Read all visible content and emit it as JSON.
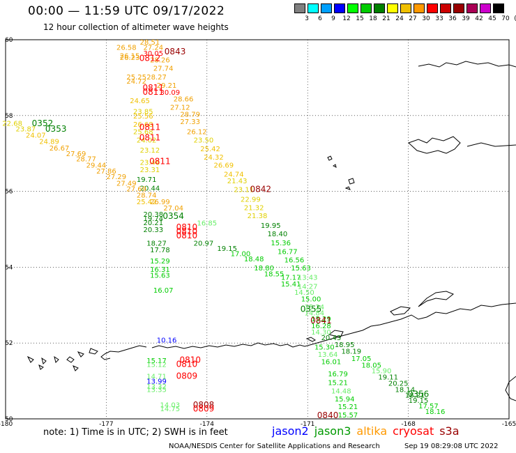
{
  "title": "00:00 — 11:59 UTC 09/17/2022",
  "subtitle": "12 hour collection of altimeter wave heights",
  "scale": {
    "labels": [
      "3",
      "6",
      "9",
      "12",
      "15",
      "18",
      "21",
      "24",
      "27",
      "30",
      "33",
      "36",
      "39",
      "42",
      "45",
      "70",
      "(ft)"
    ],
    "colors": [
      "#808080",
      "#00ffff",
      "#00a0ff",
      "#0000ff",
      "#00ff00",
      "#00cc00",
      "#008000",
      "#ffff00",
      "#f0c000",
      "#ff9900",
      "#ff0000",
      "#cc0000",
      "#990000",
      "#aa0055",
      "#cc00cc",
      "#000000"
    ]
  },
  "axes": {
    "lon_ticks": [
      "-180",
      "-177",
      "-174",
      "-171",
      "-168",
      "-165"
    ],
    "lat_ticks": [
      "60",
      "58",
      "56",
      "54",
      "52",
      "50"
    ]
  },
  "footnote": "note: 1) Time is in UTC; 2) SWH is in feet",
  "satellites": [
    {
      "name": "jason2",
      "color": "#0000ff"
    },
    {
      "name": "jason3",
      "color": "#009900"
    },
    {
      "name": "altika",
      "color": "#ff9900"
    },
    {
      "name": "cryosat",
      "color": "#ff0000"
    },
    {
      "name": "s3a",
      "color": "#990000"
    }
  ],
  "credit": "NOAA/NESDIS Center for Satellite Applications and Research",
  "timestamp": "Sep 19 08:29:08 UTC 2022",
  "pass_labels": [
    {
      "text": "0843",
      "lon": -174.95,
      "lat": 59.61,
      "color": "#990000"
    },
    {
      "text": "0812",
      "lon": -175.7,
      "lat": 59.44,
      "color": "#ff0000"
    },
    {
      "text": "0811",
      "lon": -175.6,
      "lat": 58.66,
      "color": "#ff0000"
    },
    {
      "text": "0811",
      "lon": -175.6,
      "lat": 58.55,
      "color": "#ff0000"
    },
    {
      "text": "0352",
      "lon": -178.9,
      "lat": 57.72,
      "color": "#008000"
    },
    {
      "text": "0353",
      "lon": -178.5,
      "lat": 57.57,
      "color": "#008000"
    },
    {
      "text": "0811",
      "lon": -175.7,
      "lat": 57.62,
      "color": "#ff0000"
    },
    {
      "text": "0811",
      "lon": -175.7,
      "lat": 57.34,
      "color": "#ff0000"
    },
    {
      "text": "0811",
      "lon": -175.4,
      "lat": 56.72,
      "color": "#ff0000"
    },
    {
      "text": "0842",
      "lon": -172.4,
      "lat": 55.98,
      "color": "#990000"
    },
    {
      "text": "0354",
      "lon": -175.0,
      "lat": 55.28,
      "color": "#008000"
    },
    {
      "text": "0810",
      "lon": -174.6,
      "lat": 54.98,
      "color": "#ff0000"
    },
    {
      "text": "0810",
      "lon": -174.6,
      "lat": 54.87,
      "color": "#ff0000"
    },
    {
      "text": "0810",
      "lon": -174.6,
      "lat": 54.76,
      "color": "#ff0000"
    },
    {
      "text": "0355",
      "lon": -170.9,
      "lat": 52.82,
      "color": "#008000"
    },
    {
      "text": "0841",
      "lon": -170.6,
      "lat": 52.52,
      "color": "#990000"
    },
    {
      "text": "0810",
      "lon": -174.5,
      "lat": 51.48,
      "color": "#ff0000"
    },
    {
      "text": "0810",
      "lon": -174.6,
      "lat": 51.37,
      "color": "#ff0000"
    },
    {
      "text": "0809",
      "lon": -174.6,
      "lat": 51.06,
      "color": "#ff0000"
    },
    {
      "text": "0356",
      "lon": -167.7,
      "lat": 50.58,
      "color": "#008000"
    },
    {
      "text": "0808",
      "lon": -174.1,
      "lat": 50.29,
      "color": "#990000"
    },
    {
      "text": "0809",
      "lon": -174.1,
      "lat": 50.19,
      "color": "#ff0000"
    },
    {
      "text": "0840",
      "lon": -170.4,
      "lat": 50.02,
      "color": "#990000"
    }
  ],
  "points": [
    {
      "text": "28.51",
      "lon": -175.7,
      "lat": 59.87,
      "color": "#f0a000"
    },
    {
      "text": "26.58",
      "lon": -176.4,
      "lat": 59.73,
      "color": "#f0a000"
    },
    {
      "text": "27.24",
      "lon": -175.6,
      "lat": 59.73,
      "color": "#f0a000"
    },
    {
      "text": "30.05",
      "lon": -175.6,
      "lat": 59.58,
      "color": "#ff0000"
    },
    {
      "text": "26.15",
      "lon": -176.3,
      "lat": 59.51,
      "color": "#f0a000"
    },
    {
      "text": "26.23",
      "lon": -176.3,
      "lat": 59.47,
      "color": "#f0a000"
    },
    {
      "text": "28.26",
      "lon": -175.4,
      "lat": 59.4,
      "color": "#f0a000"
    },
    {
      "text": "27.74",
      "lon": -175.3,
      "lat": 59.18,
      "color": "#f0a000"
    },
    {
      "text": "25.25",
      "lon": -176.1,
      "lat": 58.95,
      "color": "#f0a000"
    },
    {
      "text": "28.27",
      "lon": -175.5,
      "lat": 58.95,
      "color": "#f0a000"
    },
    {
      "text": "24.72",
      "lon": -176.1,
      "lat": 58.84,
      "color": "#f0a000"
    },
    {
      "text": "29.21",
      "lon": -175.2,
      "lat": 58.73,
      "color": "#f0a000"
    },
    {
      "text": "30.09",
      "lon": -175.1,
      "lat": 58.55,
      "color": "#ff0000"
    },
    {
      "text": "24.65",
      "lon": -176.0,
      "lat": 58.33,
      "color": "#f0c000"
    },
    {
      "text": "28.66",
      "lon": -174.7,
      "lat": 58.37,
      "color": "#f0a000"
    },
    {
      "text": "27.12",
      "lon": -174.8,
      "lat": 58.15,
      "color": "#f0a000"
    },
    {
      "text": "23.85",
      "lon": -175.9,
      "lat": 58.04,
      "color": "#e0d000"
    },
    {
      "text": "28.79",
      "lon": -174.5,
      "lat": 57.97,
      "color": "#f0a000"
    },
    {
      "text": "25.56",
      "lon": -175.9,
      "lat": 57.92,
      "color": "#f0c000"
    },
    {
      "text": "27.33",
      "lon": -174.5,
      "lat": 57.78,
      "color": "#f0a000"
    },
    {
      "text": "26.68",
      "lon": -175.9,
      "lat": 57.7,
      "color": "#f0c000"
    },
    {
      "text": "25.68",
      "lon": -175.9,
      "lat": 57.51,
      "color": "#e0d000"
    },
    {
      "text": "26.12",
      "lon": -174.3,
      "lat": 57.51,
      "color": "#f0a000"
    },
    {
      "text": "23.50",
      "lon": -174.1,
      "lat": 57.29,
      "color": "#e0d000"
    },
    {
      "text": "24.02",
      "lon": -175.8,
      "lat": 57.29,
      "color": "#e0d000"
    },
    {
      "text": "25.42",
      "lon": -173.9,
      "lat": 57.06,
      "color": "#f0c000"
    },
    {
      "text": "23.12",
      "lon": -175.7,
      "lat": 57.02,
      "color": "#e0d000"
    },
    {
      "text": "24.32",
      "lon": -173.8,
      "lat": 56.84,
      "color": "#f0c000"
    },
    {
      "text": "23.46",
      "lon": -175.7,
      "lat": 56.7,
      "color": "#e0d000"
    },
    {
      "text": "26.69",
      "lon": -173.5,
      "lat": 56.63,
      "color": "#f0c000"
    },
    {
      "text": "23.31",
      "lon": -175.7,
      "lat": 56.51,
      "color": "#e0d000"
    },
    {
      "text": "24.74",
      "lon": -173.2,
      "lat": 56.39,
      "color": "#f0c000"
    },
    {
      "text": "19.71",
      "lon": -175.8,
      "lat": 56.25,
      "color": "#008000"
    },
    {
      "text": "21.43",
      "lon": -173.1,
      "lat": 56.21,
      "color": "#e0d000"
    },
    {
      "text": "20.44",
      "lon": -175.7,
      "lat": 56.02,
      "color": "#008000"
    },
    {
      "text": "23.11",
      "lon": -172.9,
      "lat": 55.98,
      "color": "#e0d000"
    },
    {
      "text": "25.42",
      "lon": -175.8,
      "lat": 55.66,
      "color": "#f0c000"
    },
    {
      "text": "22.99",
      "lon": -172.7,
      "lat": 55.73,
      "color": "#e0d000"
    },
    {
      "text": "21.32",
      "lon": -172.6,
      "lat": 55.51,
      "color": "#e0d000"
    },
    {
      "text": "20.38",
      "lon": -175.6,
      "lat": 55.33,
      "color": "#008000"
    },
    {
      "text": "19.74",
      "lon": -175.6,
      "lat": 55.22,
      "color": "#008000"
    },
    {
      "text": "20.21",
      "lon": -175.6,
      "lat": 55.11,
      "color": "#008000"
    },
    {
      "text": "21.38",
      "lon": -172.5,
      "lat": 55.29,
      "color": "#e0d000"
    },
    {
      "text": "20.33",
      "lon": -175.6,
      "lat": 54.93,
      "color": "#008000"
    },
    {
      "text": "19.95",
      "lon": -172.1,
      "lat": 55.04,
      "color": "#008000"
    },
    {
      "text": "18.40",
      "lon": -171.9,
      "lat": 54.82,
      "color": "#008000"
    },
    {
      "text": "20.97",
      "lon": -174.1,
      "lat": 54.57,
      "color": "#008000"
    },
    {
      "text": "18.27",
      "lon": -175.5,
      "lat": 54.57,
      "color": "#008000"
    },
    {
      "text": "15.36",
      "lon": -171.8,
      "lat": 54.58,
      "color": "#00cc00"
    },
    {
      "text": "19.15",
      "lon": -173.4,
      "lat": 54.43,
      "color": "#008000"
    },
    {
      "text": "17.78",
      "lon": -175.4,
      "lat": 54.39,
      "color": "#008000"
    },
    {
      "text": "17.00",
      "lon": -173.0,
      "lat": 54.29,
      "color": "#00cc00"
    },
    {
      "text": "16.77",
      "lon": -171.6,
      "lat": 54.35,
      "color": "#00cc00"
    },
    {
      "text": "18.48",
      "lon": -172.6,
      "lat": 54.15,
      "color": "#00cc00"
    },
    {
      "text": "16.56",
      "lon": -171.4,
      "lat": 54.13,
      "color": "#00cc00"
    },
    {
      "text": "15.29",
      "lon": -175.4,
      "lat": 54.1,
      "color": "#00cc00"
    },
    {
      "text": "18.80",
      "lon": -172.3,
      "lat": 53.92,
      "color": "#00cc00"
    },
    {
      "text": "15.63",
      "lon": -171.2,
      "lat": 53.92,
      "color": "#00cc00"
    },
    {
      "text": "16.31",
      "lon": -175.4,
      "lat": 53.88,
      "color": "#00cc00"
    },
    {
      "text": "18.55",
      "lon": -172.0,
      "lat": 53.76,
      "color": "#00cc00"
    },
    {
      "text": "17.17",
      "lon": -171.5,
      "lat": 53.67,
      "color": "#00cc00"
    },
    {
      "text": "13.43",
      "lon": -171.0,
      "lat": 53.67,
      "color": "#66ee66"
    },
    {
      "text": "15.63",
      "lon": -175.4,
      "lat": 53.72,
      "color": "#00cc00"
    },
    {
      "text": "15.41",
      "lon": -171.5,
      "lat": 53.49,
      "color": "#00cc00"
    },
    {
      "text": "14.27",
      "lon": -171.0,
      "lat": 53.43,
      "color": "#66ee66"
    },
    {
      "text": "16.07",
      "lon": -175.3,
      "lat": 53.33,
      "color": "#00cc00"
    },
    {
      "text": "14.50",
      "lon": -171.1,
      "lat": 53.27,
      "color": "#66ee66"
    },
    {
      "text": "15.00",
      "lon": -170.9,
      "lat": 53.1,
      "color": "#00cc00"
    },
    {
      "text": "15.24",
      "lon": -170.8,
      "lat": 52.89,
      "color": "#66ee66"
    },
    {
      "text": "14.84",
      "lon": -170.8,
      "lat": 52.73,
      "color": "#66ee66"
    },
    {
      "text": "15.29",
      "lon": -170.6,
      "lat": 52.57,
      "color": "#00cc00"
    },
    {
      "text": "16.28",
      "lon": -170.6,
      "lat": 52.39,
      "color": "#00cc00"
    },
    {
      "text": "14.30",
      "lon": -170.6,
      "lat": 52.22,
      "color": "#66ee66"
    },
    {
      "text": "20.43",
      "lon": -170.3,
      "lat": 52.08,
      "color": "#008000"
    },
    {
      "text": "18.95",
      "lon": -169.9,
      "lat": 51.89,
      "color": "#008000"
    },
    {
      "text": "15.30",
      "lon": -170.5,
      "lat": 51.83,
      "color": "#00cc00"
    },
    {
      "text": "18.19",
      "lon": -169.7,
      "lat": 51.72,
      "color": "#008000"
    },
    {
      "text": "13.64",
      "lon": -170.4,
      "lat": 51.64,
      "color": "#66ee66"
    },
    {
      "text": "17.05",
      "lon": -169.4,
      "lat": 51.53,
      "color": "#00cc00"
    },
    {
      "text": "16.01",
      "lon": -170.3,
      "lat": 51.44,
      "color": "#00cc00"
    },
    {
      "text": "18.05",
      "lon": -169.1,
      "lat": 51.35,
      "color": "#00cc00"
    },
    {
      "text": "15.90",
      "lon": -168.8,
      "lat": 51.2,
      "color": "#66ee66"
    },
    {
      "text": "16.79",
      "lon": -170.1,
      "lat": 51.12,
      "color": "#00cc00"
    },
    {
      "text": "19.11",
      "lon": -168.6,
      "lat": 51.04,
      "color": "#008000"
    },
    {
      "text": "15.21",
      "lon": -170.1,
      "lat": 50.89,
      "color": "#00cc00"
    },
    {
      "text": "20.25",
      "lon": -168.3,
      "lat": 50.87,
      "color": "#008000"
    },
    {
      "text": "18.14",
      "lon": -168.1,
      "lat": 50.71,
      "color": "#008000"
    },
    {
      "text": "14.48",
      "lon": -170.0,
      "lat": 50.67,
      "color": "#66ee66"
    },
    {
      "text": "18.21",
      "lon": -167.8,
      "lat": 50.56,
      "color": "#008000"
    },
    {
      "text": "15.94",
      "lon": -169.9,
      "lat": 50.46,
      "color": "#00cc00"
    },
    {
      "text": "19.15",
      "lon": -167.7,
      "lat": 50.42,
      "color": "#008000"
    },
    {
      "text": "17.57",
      "lon": -167.4,
      "lat": 50.28,
      "color": "#00cc00"
    },
    {
      "text": "15.21",
      "lon": -169.8,
      "lat": 50.26,
      "color": "#00cc00"
    },
    {
      "text": "18.16",
      "lon": -167.2,
      "lat": 50.13,
      "color": "#00cc00"
    },
    {
      "text": "15.57",
      "lon": -169.8,
      "lat": 50.04,
      "color": "#00cc00"
    },
    {
      "text": "15.17",
      "lon": -175.5,
      "lat": 51.47,
      "color": "#00cc00"
    },
    {
      "text": "15.12",
      "lon": -175.5,
      "lat": 51.37,
      "color": "#66ee66"
    },
    {
      "text": "14.71",
      "lon": -175.5,
      "lat": 51.06,
      "color": "#66ee66"
    },
    {
      "text": "13.99",
      "lon": -175.5,
      "lat": 50.93,
      "color": "#0000ff"
    },
    {
      "text": "13.32",
      "lon": -175.5,
      "lat": 50.79,
      "color": "#66ee66"
    },
    {
      "text": "13.35",
      "lon": -175.5,
      "lat": 50.71,
      "color": "#66ee66"
    },
    {
      "text": "14.03",
      "lon": -175.1,
      "lat": 50.3,
      "color": "#66ee66"
    },
    {
      "text": "14.75",
      "lon": -175.1,
      "lat": 50.2,
      "color": "#66ee66"
    },
    {
      "text": "10.16",
      "lon": -175.2,
      "lat": 52.01,
      "color": "#0000ff"
    },
    {
      "text": "22.68",
      "lon": -179.8,
      "lat": 57.73,
      "color": "#e0d000"
    },
    {
      "text": "23.87",
      "lon": -179.4,
      "lat": 57.58,
      "color": "#e0d000"
    },
    {
      "text": "24.07",
      "lon": -179.1,
      "lat": 57.42,
      "color": "#f0c000"
    },
    {
      "text": "24.89",
      "lon": -178.7,
      "lat": 57.25,
      "color": "#f0c000"
    },
    {
      "text": "26.67",
      "lon": -178.4,
      "lat": 57.08,
      "color": "#f0a000"
    },
    {
      "text": "27.69",
      "lon": -177.9,
      "lat": 56.93,
      "color": "#f0a000"
    },
    {
      "text": "28.77",
      "lon": -177.6,
      "lat": 56.79,
      "color": "#f0a000"
    },
    {
      "text": "29.44",
      "lon": -177.3,
      "lat": 56.63,
      "color": "#f0a000"
    },
    {
      "text": "27.86",
      "lon": -177.0,
      "lat": 56.47,
      "color": "#f0a000"
    },
    {
      "text": "27.29",
      "lon": -176.7,
      "lat": 56.32,
      "color": "#f0a000"
    },
    {
      "text": "27.49",
      "lon": -176.4,
      "lat": 56.15,
      "color": "#f0a000"
    },
    {
      "text": "27.69",
      "lon": -176.1,
      "lat": 56.0,
      "color": "#f0a000"
    },
    {
      "text": "28.74",
      "lon": -175.8,
      "lat": 55.84,
      "color": "#f0a000"
    },
    {
      "text": "26.99",
      "lon": -175.4,
      "lat": 55.66,
      "color": "#f0a000"
    },
    {
      "text": "27.04",
      "lon": -175.0,
      "lat": 55.5,
      "color": "#f0a000"
    },
    {
      "text": "16.85",
      "lon": -174.0,
      "lat": 55.1,
      "color": "#66ee66"
    }
  ]
}
